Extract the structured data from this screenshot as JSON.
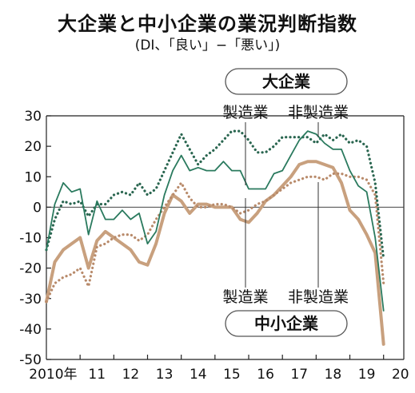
{
  "chart_title": "大企業と中小企業の業況判断指数",
  "chart_subtitle": "(DI、「良い」−「悪い」)",
  "chart_data": {
    "type": "line",
    "title": "大企業と中小企業の業況判断指数",
    "subtitle": "(DI、「良い」−「悪い」)",
    "xlabel": "",
    "ylabel": "",
    "ylim": [
      -50,
      30
    ],
    "yticks": [
      30,
      20,
      10,
      0,
      -10,
      -20,
      -30,
      -40,
      -50
    ],
    "x_tick_labels": [
      "2010年",
      "11",
      "12",
      "13",
      "14",
      "15",
      "16",
      "17",
      "18",
      "19",
      "20"
    ],
    "x_start": 2010.0,
    "x_step": 0.25,
    "grid": false,
    "group_labels": {
      "large": "大企業",
      "small": "中小企業"
    },
    "series": [
      {
        "name": "製造業",
        "group": "大企業",
        "color": "#2a7a5e",
        "style": "solid",
        "values": [
          -14,
          1,
          8,
          5,
          6,
          -9,
          2,
          -4,
          -4,
          -1,
          -4,
          -2,
          -12,
          -8,
          4,
          12,
          17,
          12,
          13,
          12,
          12,
          15,
          12,
          12,
          6,
          6,
          6,
          11,
          12,
          17,
          22,
          25,
          24,
          21,
          19,
          19,
          12,
          7,
          5,
          -10,
          -34
        ]
      },
      {
        "name": "非製造業",
        "group": "大企業",
        "color": "#2a6650",
        "style": "dotted",
        "values": [
          -14,
          -4,
          2,
          1,
          2,
          -3,
          1,
          1,
          4,
          5,
          4,
          8,
          4,
          6,
          12,
          18,
          24,
          19,
          14,
          17,
          19,
          22,
          25,
          25,
          22,
          18,
          18,
          20,
          23,
          23,
          23,
          23,
          21,
          24,
          22,
          24,
          21,
          22,
          20,
          8,
          -17
        ]
      },
      {
        "name": "製造業",
        "group": "中小企業",
        "color": "#c8a07e",
        "style": "solid",
        "values": [
          -31,
          -18,
          -14,
          -12,
          -10,
          -20,
          -11,
          -8,
          -10,
          -12,
          -14,
          -18,
          -19,
          -12,
          -2,
          4,
          2,
          -2,
          1,
          1,
          0,
          0,
          0,
          -4,
          -5,
          -2,
          2,
          4,
          7,
          10,
          14,
          15,
          15,
          14,
          13,
          8,
          -1,
          -4,
          -9,
          -15,
          -45
        ]
      },
      {
        "name": "非製造業",
        "group": "中小企業",
        "color": "#b88a6a",
        "style": "dotted",
        "values": [
          -31,
          -25,
          -23,
          -22,
          -20,
          -26,
          -13,
          -12,
          -10,
          -9,
          -9,
          -11,
          -9,
          -4,
          0,
          4,
          8,
          3,
          0,
          0,
          1,
          1,
          0,
          -2,
          -1,
          1,
          2,
          4,
          6,
          8,
          9,
          10,
          10,
          9,
          11,
          11,
          10,
          10,
          9,
          4,
          -25
        ]
      }
    ]
  }
}
